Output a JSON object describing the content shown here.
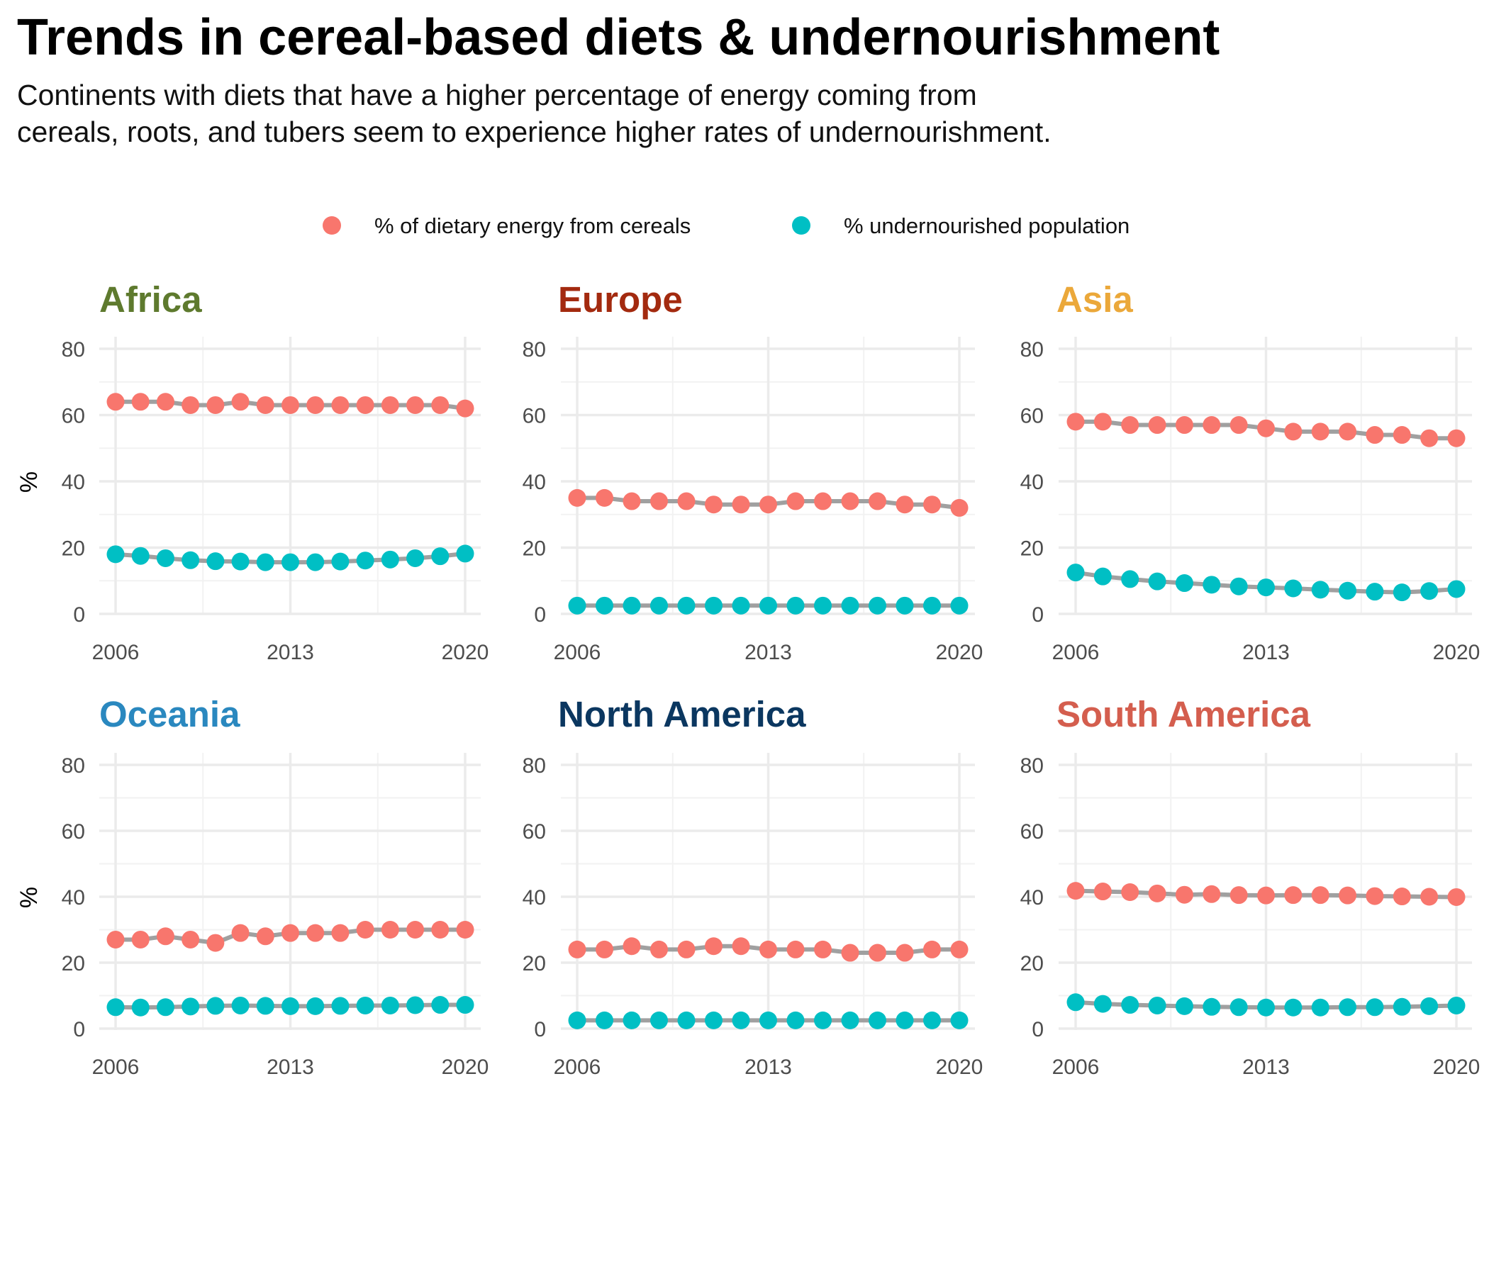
{
  "chart_data": {
    "type": "line",
    "title": "Trends in cereal-based diets & undernourishment",
    "subtitle_lines": [
      "Continents with diets that have a higher percentage of energy coming from",
      "cereals, roots, and tubers seem to experience higher rates of undernourishment."
    ],
    "ylabel": "%",
    "ylim": [
      0,
      80
    ],
    "yticks": [
      0,
      20,
      40,
      60,
      80
    ],
    "xticks": [
      2006,
      2013,
      2020
    ],
    "x": [
      2006,
      2007,
      2008,
      2009,
      2010,
      2011,
      2012,
      2013,
      2014,
      2015,
      2016,
      2017,
      2018,
      2019,
      2020
    ],
    "grid": true,
    "legend_position": "top",
    "legend": [
      {
        "label": "% of dietary energy from cereals",
        "color": "#F8766D"
      },
      {
        "label": "% undernourished population",
        "color": "#00BFC4"
      }
    ],
    "line_color": "#A0A0A0",
    "panels": [
      {
        "title": "Africa",
        "color": "#5E7A2E",
        "cereals": [
          64,
          64,
          64,
          63,
          63,
          64,
          63,
          63,
          63,
          63,
          63,
          63,
          63,
          63,
          62
        ],
        "undernourished": [
          18.0,
          17.5,
          16.8,
          16.2,
          15.9,
          15.8,
          15.6,
          15.6,
          15.6,
          15.8,
          16.1,
          16.4,
          16.8,
          17.4,
          18.2
        ]
      },
      {
        "title": "Europe",
        "color": "#A32A0F",
        "cereals": [
          35,
          35,
          34,
          34,
          34,
          33,
          33,
          33,
          34,
          34,
          34,
          34,
          33,
          33,
          32
        ],
        "undernourished": [
          2.5,
          2.5,
          2.5,
          2.5,
          2.5,
          2.5,
          2.5,
          2.5,
          2.5,
          2.5,
          2.5,
          2.5,
          2.5,
          2.5,
          2.5
        ]
      },
      {
        "title": "Asia",
        "color": "#EBA83A",
        "cereals": [
          58,
          58,
          57,
          57,
          57,
          57,
          57,
          56,
          55,
          55,
          55,
          54,
          54,
          53,
          53
        ],
        "undernourished": [
          12.5,
          11.3,
          10.5,
          9.8,
          9.3,
          8.8,
          8.3,
          8.0,
          7.7,
          7.3,
          7.0,
          6.7,
          6.5,
          6.9,
          7.5
        ]
      },
      {
        "title": "Oceania",
        "color": "#2A88BF",
        "cereals": [
          27,
          27,
          28,
          27,
          26,
          29,
          28,
          29,
          29,
          29,
          30,
          30,
          30,
          30,
          30
        ],
        "undernourished": [
          6.5,
          6.4,
          6.5,
          6.7,
          6.9,
          7.0,
          6.9,
          6.8,
          6.8,
          6.9,
          7.0,
          7.0,
          7.1,
          7.2,
          7.2
        ]
      },
      {
        "title": "North America",
        "color": "#0B3760",
        "cereals": [
          24,
          24,
          25,
          24,
          24,
          25,
          25,
          24,
          24,
          24,
          23,
          23,
          23,
          24,
          24
        ],
        "undernourished": [
          2.5,
          2.5,
          2.5,
          2.5,
          2.5,
          2.5,
          2.5,
          2.5,
          2.5,
          2.5,
          2.5,
          2.5,
          2.5,
          2.5,
          2.5
        ]
      },
      {
        "title": "South America",
        "color": "#D45E4E",
        "cereals": [
          41.8,
          41.6,
          41.4,
          41.0,
          40.6,
          40.8,
          40.5,
          40.4,
          40.5,
          40.5,
          40.4,
          40.2,
          40.1,
          40.0,
          39.9
        ],
        "undernourished": [
          8.0,
          7.5,
          7.2,
          7.0,
          6.8,
          6.6,
          6.5,
          6.4,
          6.4,
          6.4,
          6.5,
          6.5,
          6.6,
          6.8,
          7.0
        ]
      }
    ]
  }
}
